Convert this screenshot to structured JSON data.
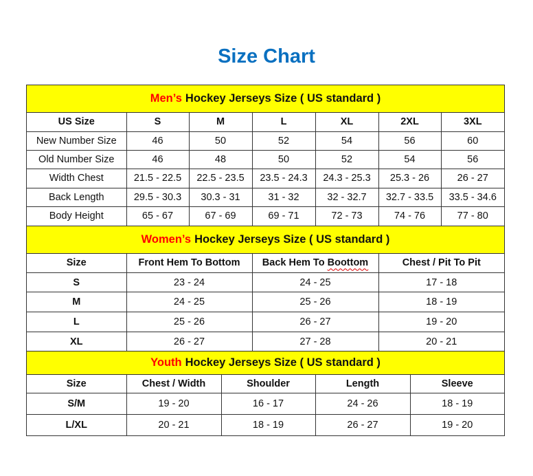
{
  "title": "Size Chart",
  "sections": [
    {
      "highlight": "Men’s",
      "heading": "Hockey Jerseys Size ( US standard )",
      "columns": [
        "US Size",
        "S",
        "M",
        "L",
        "XL",
        "2XL",
        "3XL"
      ],
      "rows": [
        [
          "New Number Size",
          "46",
          "50",
          "52",
          "54",
          "56",
          "60"
        ],
        [
          "Old Number Size",
          "46",
          "48",
          "50",
          "52",
          "54",
          "56"
        ],
        [
          "Width Chest",
          "21.5 - 22.5",
          "22.5 - 23.5",
          "23.5 - 24.3",
          "24.3 - 25.3",
          "25.3 - 26",
          "26 - 27"
        ],
        [
          "Back Length",
          "29.5 - 30.3",
          "30.3 - 31",
          "31 - 32",
          "32 - 32.7",
          "32.7 - 33.5",
          "33.5 - 34.6"
        ],
        [
          "Body Height",
          "65 - 67",
          "67 - 69",
          "69 - 71",
          "72 - 73",
          "74 - 76",
          "77 - 80"
        ]
      ]
    },
    {
      "highlight": "Women’s",
      "heading": "Hockey Jerseys Size ( US standard )",
      "columns": [
        "Size",
        "Front Hem To Bottom",
        "Back Hem To Boottom",
        "Chest / Pit To Pit"
      ],
      "rows": [
        [
          "S",
          "23 - 24",
          "24 - 25",
          "17 - 18"
        ],
        [
          "M",
          "24 - 25",
          "25 - 26",
          "18 - 19"
        ],
        [
          "L",
          "25 - 26",
          "26 - 27",
          "19 - 20"
        ],
        [
          "XL",
          "26 - 27",
          "27 - 28",
          "20 - 21"
        ]
      ]
    },
    {
      "highlight": "Youth",
      "heading": "Hockey Jerseys Size ( US standard )",
      "columns": [
        "Size",
        "Chest / Width",
        "Shoulder",
        "Length",
        "Sleeve"
      ],
      "rows": [
        [
          "S/M",
          "19 - 20",
          "16 - 17",
          "24 - 26",
          "18 - 19"
        ],
        [
          "L/XL",
          "20 - 21",
          "18 - 19",
          "26 - 27",
          "19 - 20"
        ]
      ]
    }
  ]
}
